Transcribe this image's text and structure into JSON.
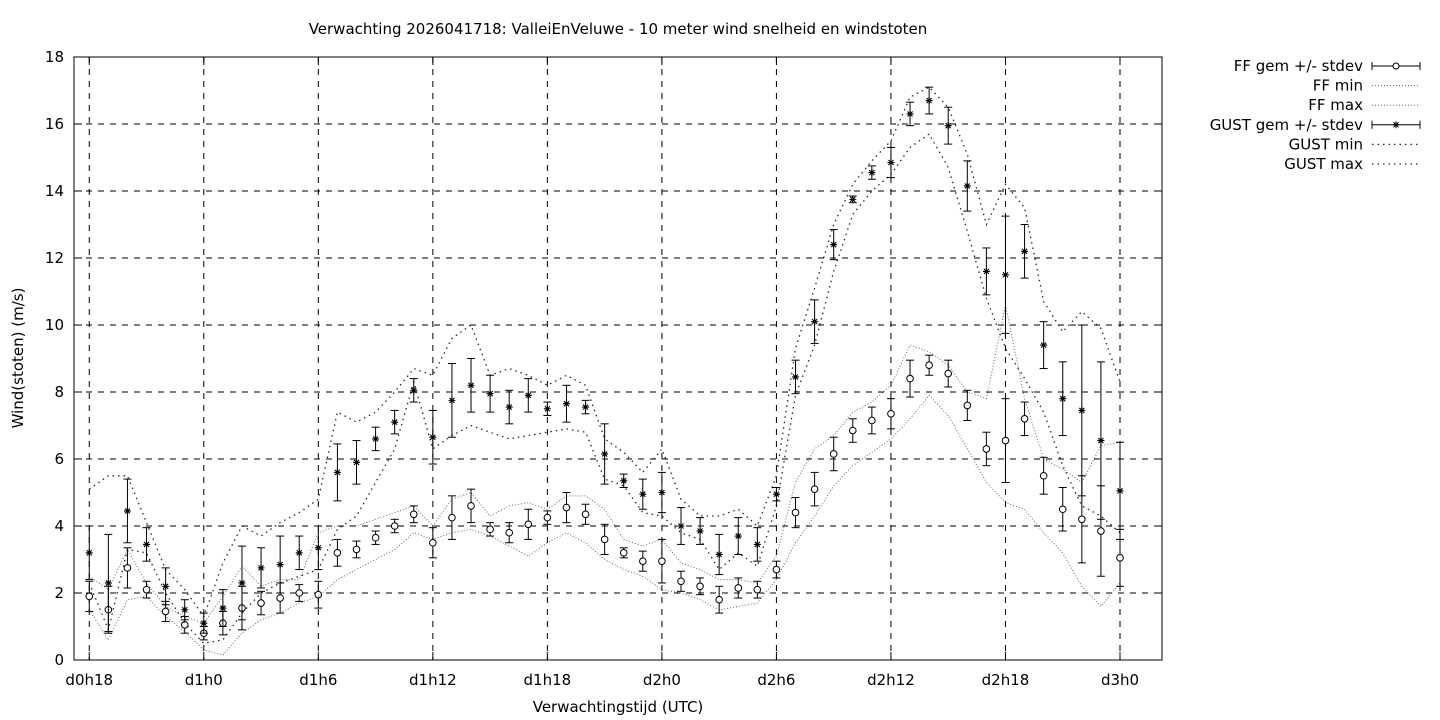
{
  "chart_data": {
    "type": "scatter",
    "title": "Verwachting 2026041718: ValleiEnVeluwe - 10 meter wind snelheid en windstoten",
    "xlabel": "Verwachtingstijd (UTC)",
    "ylabel": "Wind(stoten) (m/s)",
    "ylim": [
      0,
      18
    ],
    "yticks": [
      0,
      2,
      4,
      6,
      8,
      10,
      12,
      14,
      16,
      18
    ],
    "x_tick_labels": [
      "d0h18",
      "d1h0",
      "d1h6",
      "d1h12",
      "d1h18",
      "d2h0",
      "d2h6",
      "d2h12",
      "d2h18",
      "d3h0"
    ],
    "x_tick_hours": [
      18,
      24,
      30,
      36,
      42,
      48,
      54,
      60,
      66,
      72
    ],
    "xlim_hours": [
      18,
      72
    ],
    "grid": true,
    "legend_position": "outside-top-right",
    "x_hours": [
      18,
      19,
      20,
      21,
      22,
      23,
      24,
      25,
      26,
      27,
      28,
      29,
      30,
      31,
      32,
      33,
      34,
      35,
      36,
      37,
      38,
      39,
      40,
      41,
      42,
      43,
      44,
      45,
      46,
      47,
      48,
      49,
      50,
      51,
      52,
      53,
      54,
      55,
      56,
      57,
      58,
      59,
      60,
      61,
      62,
      63,
      64,
      65,
      66,
      67,
      68,
      69,
      70,
      71,
      72
    ],
    "series": [
      {
        "name": "FF gem +/- stdev",
        "marker": "circle",
        "mean": [
          1.9,
          1.5,
          2.75,
          2.1,
          1.45,
          1.05,
          0.8,
          1.1,
          1.55,
          1.7,
          1.85,
          2.0,
          1.95,
          3.2,
          3.3,
          3.65,
          4.0,
          4.35,
          3.5,
          4.25,
          4.6,
          3.9,
          3.8,
          4.05,
          4.25,
          4.55,
          4.35,
          3.6,
          3.2,
          2.95,
          2.95,
          2.35,
          2.2,
          1.8,
          2.15,
          2.1,
          2.7,
          4.4,
          5.1,
          6.15,
          6.85,
          7.15,
          7.35,
          8.4,
          8.8,
          8.55,
          7.6,
          6.3,
          6.55,
          7.2,
          5.5,
          4.5,
          4.2,
          3.85,
          3.05
        ],
        "stdev": [
          0.45,
          0.7,
          0.6,
          0.25,
          0.3,
          0.25,
          0.2,
          0.35,
          0.65,
          0.35,
          0.45,
          0.25,
          0.4,
          0.4,
          0.25,
          0.2,
          0.2,
          0.25,
          0.45,
          0.65,
          0.5,
          0.2,
          0.3,
          0.45,
          0.2,
          0.45,
          0.3,
          0.45,
          0.15,
          0.3,
          0.65,
          0.3,
          0.25,
          0.4,
          0.3,
          0.25,
          0.25,
          0.45,
          0.5,
          0.5,
          0.35,
          0.4,
          0.45,
          0.55,
          0.3,
          0.4,
          0.45,
          0.5,
          1.25,
          0.5,
          0.55,
          0.65,
          1.3,
          1.35,
          0.85
        ]
      },
      {
        "name": "FF min",
        "style": "dotted",
        "values": [
          1.5,
          0.6,
          1.8,
          1.9,
          1.3,
          0.85,
          0.3,
          0.15,
          0.8,
          1.2,
          1.4,
          1.7,
          1.9,
          2.4,
          2.7,
          3.0,
          3.3,
          3.8,
          3.6,
          3.8,
          3.9,
          3.7,
          3.4,
          3.1,
          3.5,
          3.8,
          3.5,
          3.0,
          2.7,
          2.5,
          2.1,
          2.0,
          1.8,
          1.5,
          1.6,
          1.7,
          2.4,
          3.5,
          4.3,
          5.2,
          5.8,
          6.2,
          6.6,
          7.2,
          7.9,
          7.3,
          6.3,
          5.3,
          4.7,
          4.5,
          3.8,
          3.2,
          2.2,
          1.6,
          2.3
        ]
      },
      {
        "name": "FF max",
        "style": "dotted",
        "values": [
          2.5,
          2.1,
          3.3,
          2.3,
          1.6,
          1.3,
          1.1,
          1.9,
          2.8,
          2.2,
          2.4,
          2.4,
          3.8,
          4.0,
          4.0,
          4.2,
          4.4,
          4.6,
          4.0,
          4.8,
          5.0,
          4.3,
          4.6,
          4.7,
          4.5,
          4.9,
          4.9,
          4.5,
          3.6,
          3.4,
          3.6,
          2.9,
          2.7,
          2.4,
          2.4,
          2.3,
          3.1,
          5.3,
          6.3,
          6.7,
          7.4,
          7.7,
          8.2,
          9.4,
          9.2,
          8.8,
          8.0,
          7.8,
          10.6,
          7.8,
          6.0,
          5.7,
          5.3,
          6.4,
          6.5
        ]
      },
      {
        "name": "GUST gem +/- stdev",
        "marker": "star",
        "mean": [
          3.2,
          2.3,
          4.45,
          3.45,
          2.2,
          1.5,
          1.1,
          1.55,
          2.3,
          2.75,
          2.85,
          3.2,
          3.35,
          5.6,
          5.9,
          6.6,
          7.1,
          8.05,
          6.65,
          7.75,
          8.2,
          7.95,
          7.55,
          7.9,
          7.5,
          7.65,
          7.55,
          6.15,
          5.35,
          4.95,
          5.0,
          4.0,
          3.85,
          3.15,
          3.7,
          3.45,
          4.95,
          8.45,
          10.1,
          12.4,
          13.75,
          14.55,
          14.85,
          16.3,
          16.7,
          15.95,
          14.15,
          11.6,
          11.5,
          12.2,
          9.4,
          7.8,
          7.45,
          6.55,
          5.05
        ],
        "stdev": [
          0.8,
          1.45,
          0.95,
          0.5,
          0.55,
          0.3,
          0.3,
          0.55,
          1.1,
          0.6,
          0.85,
          0.5,
          0.65,
          0.85,
          0.65,
          0.35,
          0.35,
          0.35,
          0.8,
          1.1,
          0.8,
          0.55,
          0.5,
          0.5,
          0.2,
          0.55,
          0.2,
          0.9,
          0.2,
          0.45,
          0.6,
          0.55,
          0.4,
          0.6,
          0.55,
          0.5,
          0.2,
          0.5,
          0.65,
          0.45,
          0.1,
          0.2,
          0.45,
          0.35,
          0.4,
          0.55,
          0.75,
          0.7,
          1.75,
          0.8,
          0.7,
          1.1,
          2.55,
          2.35,
          1.45
        ]
      },
      {
        "name": "GUST min",
        "style": "dotted",
        "values": [
          2.3,
          0.9,
          3.3,
          3.2,
          2.0,
          1.1,
          0.5,
          0.6,
          1.4,
          2.0,
          2.3,
          2.5,
          2.7,
          3.9,
          4.3,
          5.3,
          6.3,
          8.3,
          6.3,
          6.7,
          7.0,
          6.8,
          6.6,
          6.7,
          6.8,
          6.9,
          6.8,
          5.4,
          5.2,
          4.4,
          4.3,
          3.8,
          3.6,
          2.7,
          3.2,
          2.8,
          4.6,
          7.9,
          9.4,
          11.6,
          13.3,
          14.0,
          14.5,
          15.3,
          15.7,
          14.7,
          12.8,
          10.8,
          9.3,
          8.4,
          7.4,
          5.8,
          4.6,
          4.3,
          3.8
        ]
      },
      {
        "name": "GUST max",
        "style": "dotted",
        "values": [
          5.1,
          5.5,
          5.5,
          4.1,
          2.7,
          2.1,
          1.3,
          2.9,
          4.0,
          3.7,
          4.1,
          4.4,
          4.8,
          7.4,
          7.1,
          7.4,
          8.0,
          8.7,
          8.5,
          9.6,
          10.0,
          8.5,
          8.7,
          8.5,
          8.2,
          8.5,
          8.2,
          6.6,
          6.2,
          5.6,
          6.3,
          4.8,
          4.3,
          4.3,
          4.5,
          4.0,
          5.5,
          9.3,
          11.1,
          13.0,
          14.2,
          14.9,
          15.5,
          16.8,
          17.1,
          16.5,
          15.1,
          13.0,
          14.2,
          13.5,
          10.7,
          9.8,
          10.4,
          9.9,
          8.3
        ]
      }
    ]
  }
}
